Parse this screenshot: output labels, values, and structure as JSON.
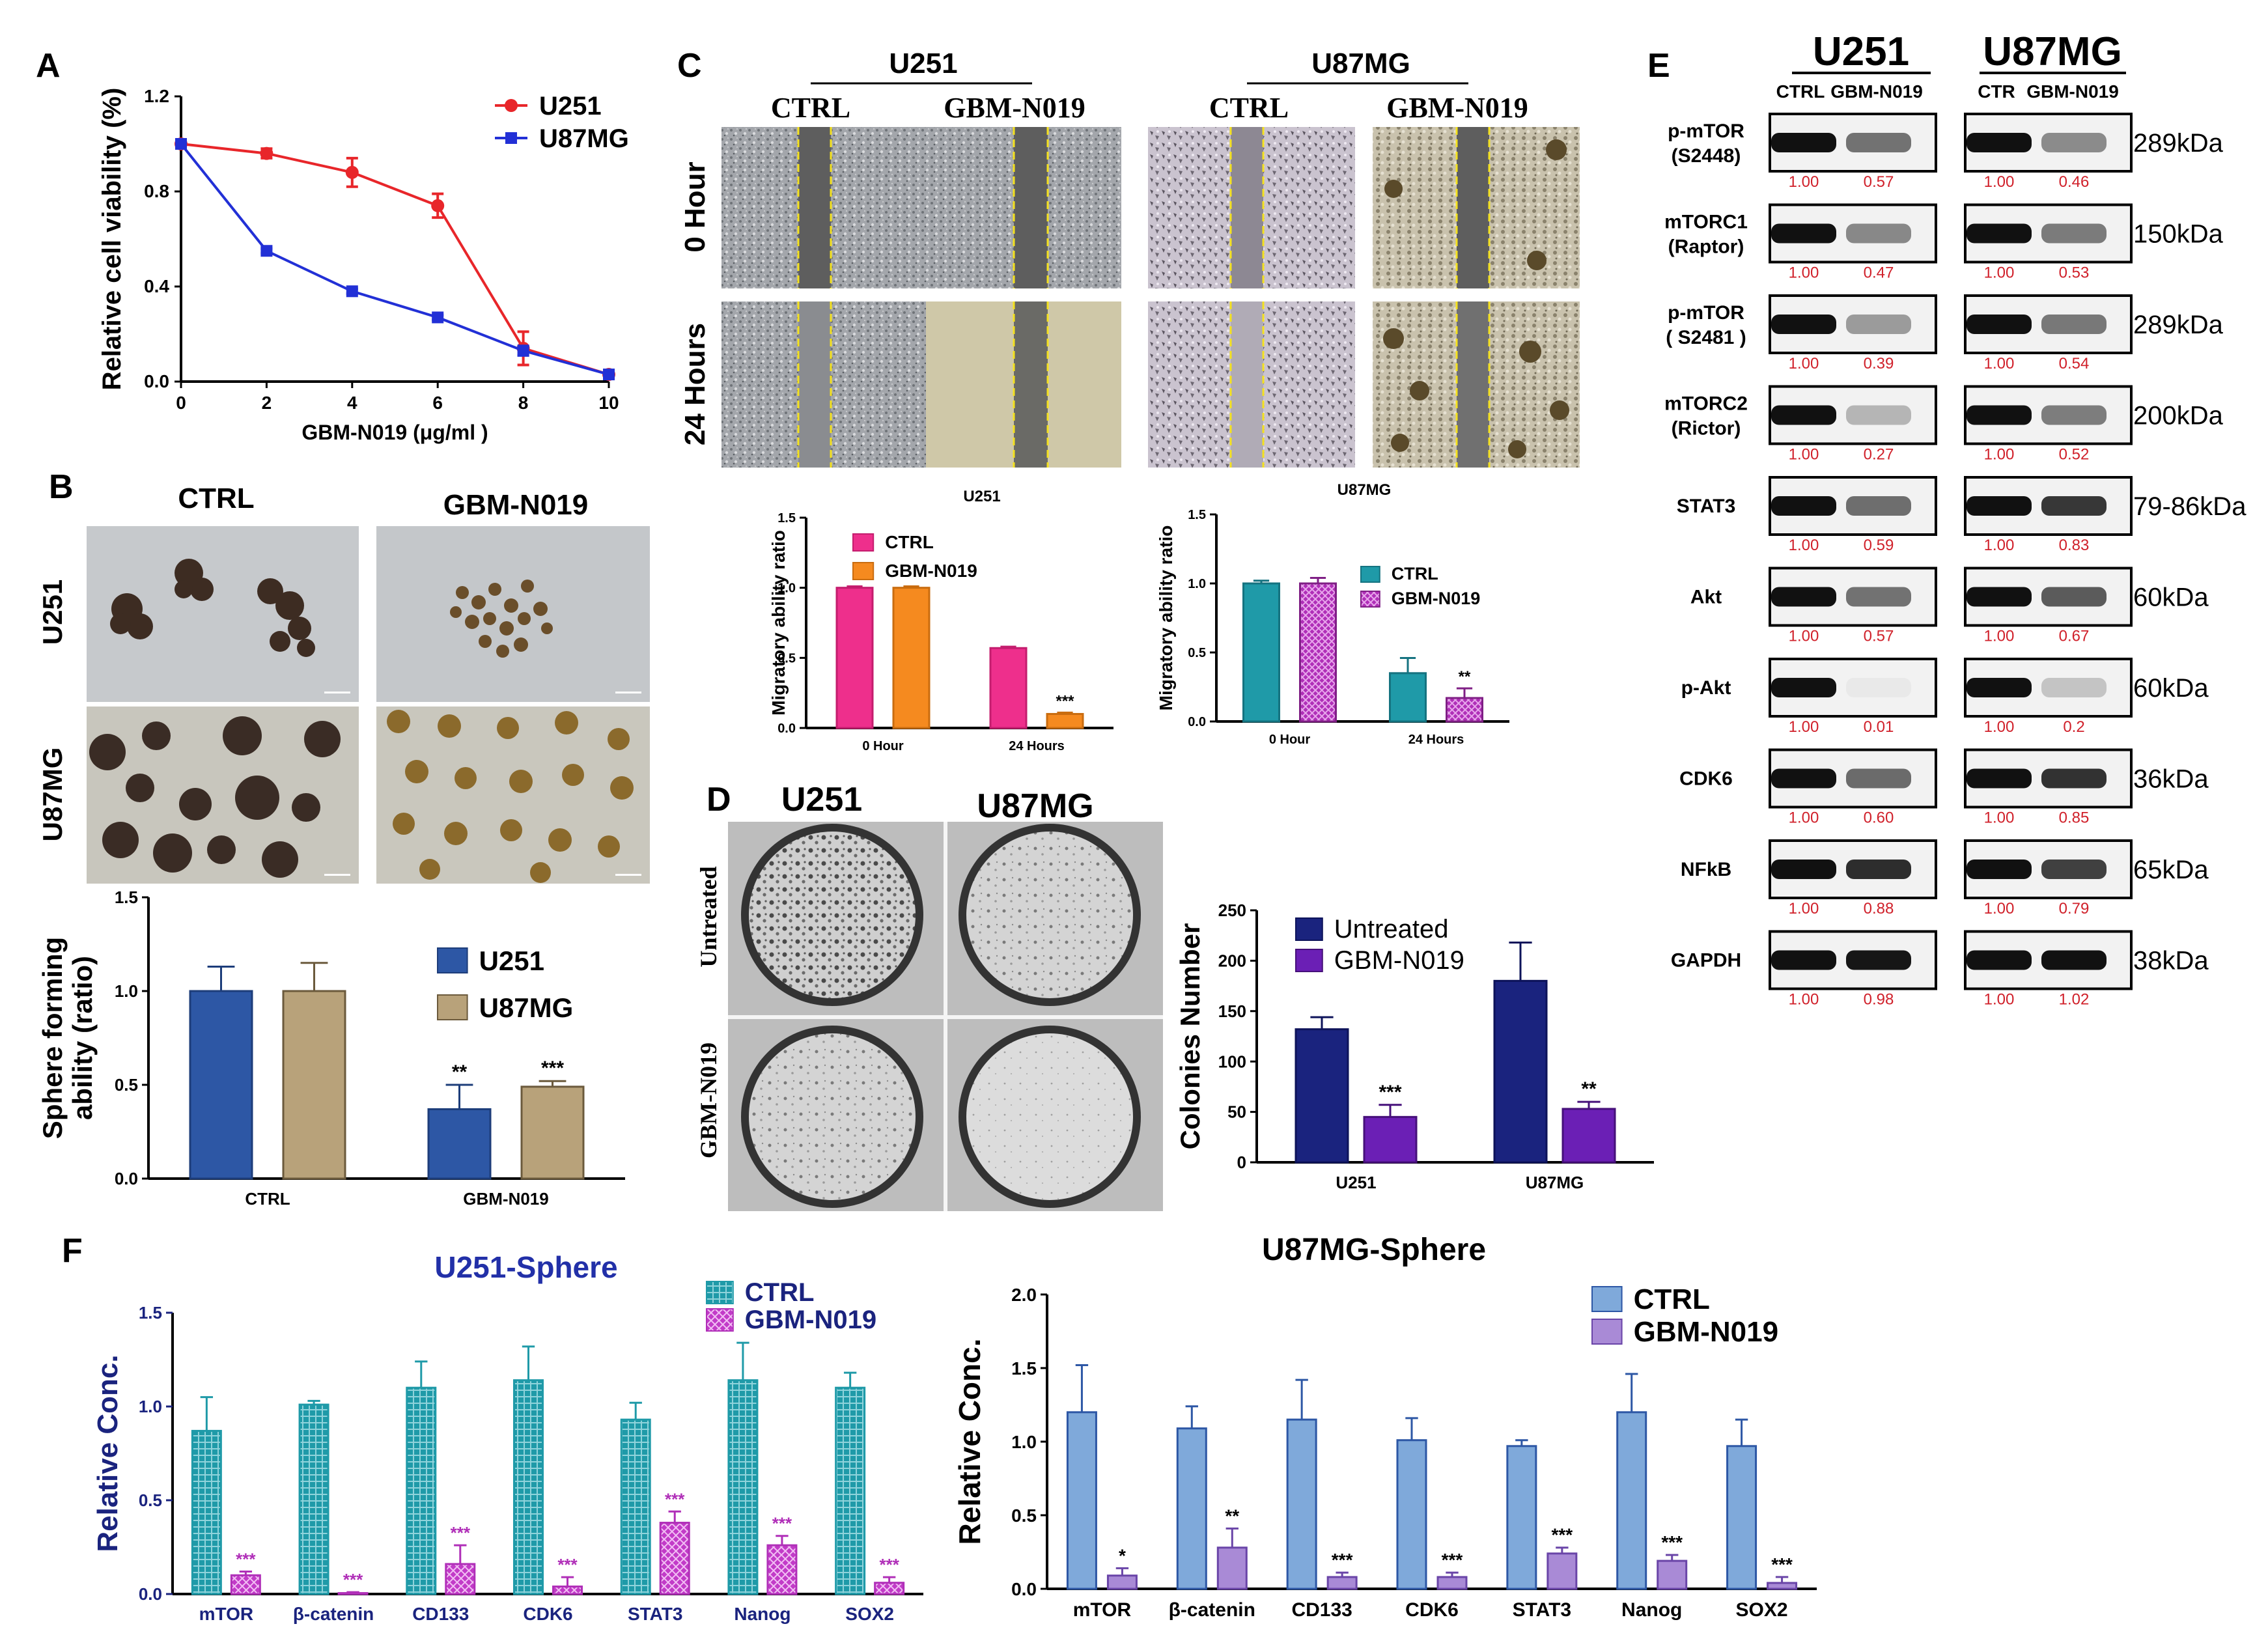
{
  "panel_labels": {
    "a": "A",
    "b": "B",
    "c": "C",
    "d": "D",
    "e": "E",
    "f": "F"
  },
  "colors": {
    "red": "#e8262a",
    "blue": "#2230d6",
    "navy": "#1a237e",
    "teal": "#1f9aa8",
    "magenta": "#b02fb8",
    "pink": "#ee2f8c",
    "orange": "#f58a1f",
    "steel": "#2d57a5",
    "tan": "#b8a27a",
    "lightblue": "#7fa9da",
    "lilac": "#a98ad6",
    "wbred": "#d0202a"
  },
  "chart_data": [
    {
      "id": "A",
      "type": "line",
      "x": [
        0,
        2,
        4,
        6,
        8,
        10
      ],
      "xlabel": "GBM-N019 (μg/ml )",
      "ylabel": "Relative cell viability (%)",
      "xlim": [
        0,
        10
      ],
      "ylim": [
        0,
        1.2
      ],
      "xticks": [
        "0",
        "2",
        "4",
        "6",
        "8",
        "10"
      ],
      "yticks": [
        "0.0",
        "0.4",
        "0.8",
        "1.2"
      ],
      "series": [
        {
          "name": "U251",
          "values": [
            1.0,
            0.96,
            0.88,
            0.74,
            0.14,
            0.03
          ],
          "errors": [
            0,
            0.02,
            0.06,
            0.05,
            0.07,
            0.01
          ]
        },
        {
          "name": "U87MG",
          "values": [
            1.0,
            0.55,
            0.38,
            0.27,
            0.13,
            0.03
          ],
          "errors": [
            0,
            0.01,
            0.01,
            0.01,
            0.02,
            0.01
          ]
        }
      ]
    },
    {
      "id": "B",
      "type": "bar",
      "categories": [
        "CTRL",
        "GBM-N019"
      ],
      "ylabel": "Sphere forming ability (ratio)",
      "ylabel_lines": [
        "Sphere forming",
        "ability (ratio)"
      ],
      "ylim": [
        0,
        1.5
      ],
      "yticks": [
        "0.0",
        "0.5",
        "1.0",
        "1.5"
      ],
      "series": [
        {
          "name": "U251",
          "values": [
            1.0,
            0.37
          ],
          "errors": [
            0.13,
            0.13
          ],
          "sig": [
            "",
            "**"
          ]
        },
        {
          "name": "U87MG",
          "values": [
            1.0,
            0.49
          ],
          "errors": [
            0.15,
            0.03
          ],
          "sig": [
            "",
            "***"
          ]
        }
      ]
    },
    {
      "id": "C1",
      "type": "bar",
      "title": "U251",
      "categories": [
        "0 Hour",
        "24 Hours"
      ],
      "ylabel": "Migratory ability ratio",
      "ylim": [
        0,
        1.5
      ],
      "yticks": [
        "0.0",
        "0.5",
        "1.0",
        "1.5"
      ],
      "series": [
        {
          "name": "CTRL",
          "values": [
            1.0,
            0.57
          ],
          "errors": [
            0.01,
            0.01
          ],
          "sig": [
            "",
            ""
          ]
        },
        {
          "name": "GBM-N019",
          "values": [
            1.0,
            0.1
          ],
          "errors": [
            0.01,
            0.01
          ],
          "sig": [
            "",
            "***"
          ]
        }
      ]
    },
    {
      "id": "C2",
      "type": "bar",
      "title": "U87MG",
      "categories": [
        "0 Hour",
        "24 Hours"
      ],
      "ylabel": "Migratory ability ratio",
      "ylim": [
        0,
        1.5
      ],
      "yticks": [
        "0.0",
        "0.5",
        "1.0",
        "1.5"
      ],
      "series": [
        {
          "name": "CTRL",
          "values": [
            1.0,
            0.35
          ],
          "errors": [
            0.02,
            0.11
          ],
          "sig": [
            "",
            ""
          ]
        },
        {
          "name": "GBM-N019",
          "values": [
            1.0,
            0.17
          ],
          "errors": [
            0.04,
            0.07
          ],
          "sig": [
            "",
            "**"
          ]
        }
      ]
    },
    {
      "id": "D",
      "type": "bar",
      "categories": [
        "U251",
        "U87MG"
      ],
      "ylabel": "Colonies Number",
      "ylim": [
        0,
        250
      ],
      "yticks": [
        "0",
        "50",
        "100",
        "150",
        "200",
        "250"
      ],
      "series": [
        {
          "name": "Untreated",
          "values": [
            132,
            180
          ],
          "errors": [
            12,
            38
          ],
          "sig": [
            "",
            ""
          ]
        },
        {
          "name": "GBM-N019",
          "values": [
            45,
            53
          ],
          "errors": [
            12,
            7
          ],
          "sig": [
            "***",
            "**"
          ]
        }
      ]
    },
    {
      "id": "F1",
      "type": "bar",
      "title": "U251-Sphere",
      "categories": [
        "mTOR",
        "β-catenin",
        "CD133",
        "CDK6",
        "STAT3",
        "Nanog",
        "SOX2"
      ],
      "ylabel": "Relative Conc.",
      "ylim": [
        0,
        1.5
      ],
      "yticks": [
        "0.0",
        "0.5",
        "1.0",
        "1.5"
      ],
      "series": [
        {
          "name": "CTRL",
          "values": [
            0.87,
            1.01,
            1.1,
            1.14,
            0.93,
            1.14,
            1.1
          ],
          "errors": [
            0.18,
            0.02,
            0.14,
            0.18,
            0.09,
            0.2,
            0.08
          ],
          "sig": [
            "",
            "",
            "",
            "",
            "",
            "",
            ""
          ]
        },
        {
          "name": "GBM-N019",
          "values": [
            0.1,
            0.005,
            0.16,
            0.04,
            0.38,
            0.26,
            0.06
          ],
          "errors": [
            0.02,
            0.005,
            0.1,
            0.05,
            0.06,
            0.05,
            0.03
          ],
          "sig": [
            "***",
            "***",
            "***",
            "***",
            "***",
            "***",
            "***"
          ]
        }
      ]
    },
    {
      "id": "F2",
      "type": "bar",
      "title": "U87MG-Sphere",
      "categories": [
        "mTOR",
        "β-catenin",
        "CD133",
        "CDK6",
        "STAT3",
        "Nanog",
        "SOX2"
      ],
      "ylabel": "Relative Conc.",
      "ylim": [
        0,
        2.0
      ],
      "yticks": [
        "0.0",
        "0.5",
        "1.0",
        "1.5",
        "2.0"
      ],
      "series": [
        {
          "name": "CTRL",
          "values": [
            1.2,
            1.09,
            1.15,
            1.01,
            0.97,
            1.2,
            0.97
          ],
          "errors": [
            0.32,
            0.15,
            0.27,
            0.15,
            0.04,
            0.26,
            0.18
          ],
          "sig": [
            "",
            "",
            "",
            "",
            "",
            "",
            ""
          ]
        },
        {
          "name": "GBM-N019",
          "values": [
            0.09,
            0.28,
            0.08,
            0.08,
            0.24,
            0.19,
            0.04
          ],
          "errors": [
            0.05,
            0.13,
            0.03,
            0.03,
            0.04,
            0.04,
            0.04
          ],
          "sig": [
            "*",
            "**",
            "***",
            "***",
            "***",
            "***",
            "***"
          ]
        }
      ]
    }
  ],
  "panelB_images": {
    "col_headers": [
      "CTRL",
      "GBM-N019"
    ],
    "row_headers": [
      "U251",
      "U87MG"
    ]
  },
  "panelC_images": {
    "cell_lines": [
      "U251",
      "U87MG"
    ],
    "col_headers": [
      "CTRL",
      "GBM-N019",
      "CTRL",
      "GBM-N019"
    ],
    "row_headers": [
      "0 Hour",
      "24 Hours"
    ],
    "captions": [
      "U251",
      "U87MG"
    ]
  },
  "panelD_images": {
    "cell_lines": [
      "U251",
      "U87MG"
    ],
    "row_headers": [
      "Untreated",
      "GBM-N019"
    ]
  },
  "western": {
    "cell_lines": [
      "U251",
      "U87MG"
    ],
    "u251_lanes": [
      "CTRL",
      "GBM-N019"
    ],
    "u87_lanes": [
      "CTR",
      "GBM-N019"
    ],
    "rows": [
      {
        "label1": "p-mTOR",
        "label2": "(S2448)",
        "kda": "289kDa",
        "u251": [
          "1.00",
          "0.57"
        ],
        "u87": [
          "1.00",
          "0.46"
        ]
      },
      {
        "label1": "mTORC1",
        "label2": "(Raptor)",
        "kda": "150kDa",
        "u251": [
          "1.00",
          "0.47"
        ],
        "u87": [
          "1.00",
          "0.53"
        ]
      },
      {
        "label1": "p-mTOR",
        "label2": "( S2481 )",
        "kda": "289kDa",
        "u251": [
          "1.00",
          "0.39"
        ],
        "u87": [
          "1.00",
          "0.54"
        ]
      },
      {
        "label1": "mTORC2",
        "label2": "(Rictor)",
        "kda": "200kDa",
        "u251": [
          "1.00",
          "0.27"
        ],
        "u87": [
          "1.00",
          "0.52"
        ]
      },
      {
        "label1": "STAT3",
        "label2": "",
        "kda": "79-86kDa",
        "u251": [
          "1.00",
          "0.59"
        ],
        "u87": [
          "1.00",
          "0.83"
        ]
      },
      {
        "label1": "Akt",
        "label2": "",
        "kda": "60kDa",
        "u251": [
          "1.00",
          "0.57"
        ],
        "u87": [
          "1.00",
          "0.67"
        ]
      },
      {
        "label1": "p-Akt",
        "label2": "",
        "kda": "60kDa",
        "u251": [
          "1.00",
          "0.01"
        ],
        "u87": [
          "1.00",
          "0.2"
        ]
      },
      {
        "label1": "CDK6",
        "label2": "",
        "kda": "36kDa",
        "u251": [
          "1.00",
          "0.60"
        ],
        "u87": [
          "1.00",
          "0.85"
        ]
      },
      {
        "label1": "NFkB",
        "label2": "",
        "kda": "65kDa",
        "u251": [
          "1.00",
          "0.88"
        ],
        "u87": [
          "1.00",
          "0.79"
        ]
      },
      {
        "label1": "GAPDH",
        "label2": "",
        "kda": "38kDa",
        "u251": [
          "1.00",
          "0.98"
        ],
        "u87": [
          "1.00",
          "1.02"
        ]
      }
    ]
  }
}
